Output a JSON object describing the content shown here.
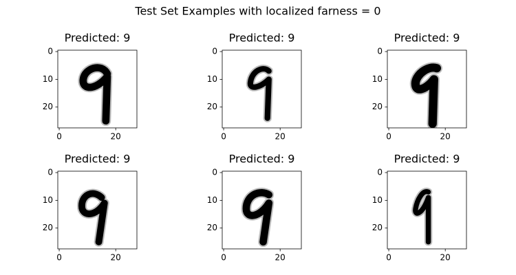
{
  "title": "Test Set Examples with localized farness = 0",
  "chart_data": [
    {
      "type": "image",
      "title": "Predicted: 9",
      "xlim": [
        -0.5,
        27.5
      ],
      "ylim": [
        27.5,
        -0.5
      ],
      "xticks": [
        0,
        20
      ],
      "yticks": [
        0,
        10,
        20
      ]
    },
    {
      "type": "image",
      "title": "Predicted: 9",
      "xlim": [
        -0.5,
        27.5
      ],
      "ylim": [
        27.5,
        -0.5
      ],
      "xticks": [
        0,
        20
      ],
      "yticks": [
        0,
        10,
        20
      ]
    },
    {
      "type": "image",
      "title": "Predicted: 9",
      "xlim": [
        -0.5,
        27.5
      ],
      "ylim": [
        27.5,
        -0.5
      ],
      "xticks": [
        0,
        20
      ],
      "yticks": [
        0,
        10,
        20
      ]
    },
    {
      "type": "image",
      "title": "Predicted: 9",
      "xlim": [
        -0.5,
        27.5
      ],
      "ylim": [
        27.5,
        -0.5
      ],
      "xticks": [
        0,
        20
      ],
      "yticks": [
        0,
        10,
        20
      ]
    },
    {
      "type": "image",
      "title": "Predicted: 9",
      "xlim": [
        -0.5,
        27.5
      ],
      "ylim": [
        27.5,
        -0.5
      ],
      "xticks": [
        0,
        20
      ],
      "yticks": [
        0,
        10,
        20
      ]
    },
    {
      "type": "image",
      "title": "Predicted: 9",
      "xlim": [
        -0.5,
        27.5
      ],
      "ylim": [
        27.5,
        -0.5
      ],
      "xticks": [
        0,
        20
      ],
      "yticks": [
        0,
        10,
        20
      ]
    }
  ]
}
